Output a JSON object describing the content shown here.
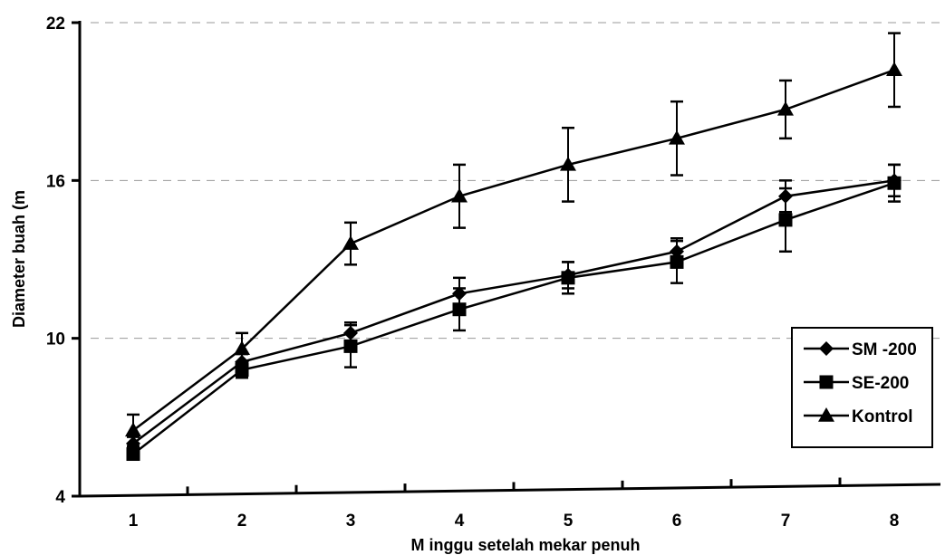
{
  "chart_data": {
    "type": "line",
    "xlabel": "M inggu setelah mekar penuh",
    "ylabel": "Diameter buah (m",
    "categories": [
      "1",
      "2",
      "3",
      "4",
      "5",
      "6",
      "7",
      "8"
    ],
    "y_ticks": [
      "4",
      "10",
      "16",
      "22"
    ],
    "ylim": [
      4,
      22
    ],
    "grid": "horizontal dashed",
    "legend_position": "bottom-right",
    "series": [
      {
        "name": "SM -200",
        "marker": "diamond",
        "values": [
          6.0,
          9.1,
          10.2,
          11.7,
          12.4,
          13.3,
          15.4,
          16.0
        ],
        "errors": [
          0.25,
          0.3,
          0.4,
          0.6,
          0.5,
          0.5,
          0.6,
          0.6
        ]
      },
      {
        "name": "SE-200",
        "marker": "square",
        "values": [
          5.6,
          8.8,
          9.7,
          11.1,
          12.3,
          12.9,
          14.5,
          15.9
        ],
        "errors": [
          0.2,
          0.3,
          0.8,
          0.8,
          0.6,
          0.8,
          1.2,
          0.7
        ]
      },
      {
        "name": "Kontrol",
        "marker": "triangle",
        "values": [
          6.5,
          9.6,
          13.6,
          15.4,
          16.6,
          17.6,
          18.7,
          20.2
        ],
        "errors": [
          0.6,
          0.6,
          0.8,
          1.2,
          1.4,
          1.4,
          1.1,
          1.4
        ]
      }
    ],
    "colors": {
      "line": "#000000",
      "grid": "#999999"
    }
  }
}
